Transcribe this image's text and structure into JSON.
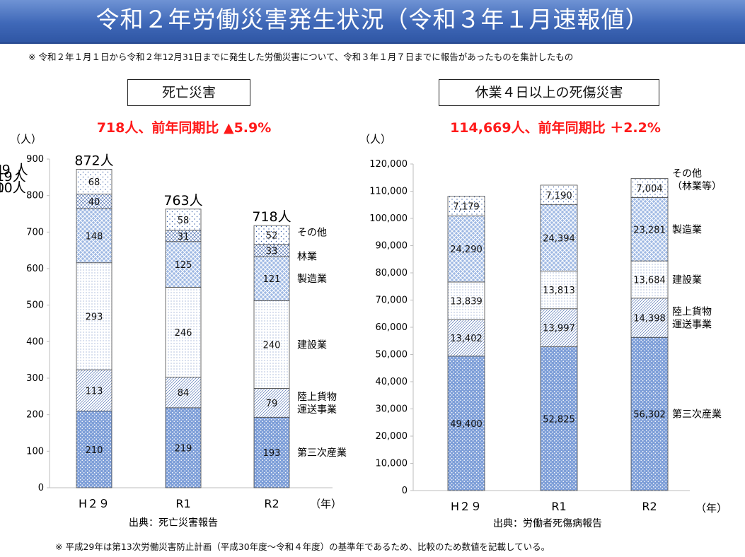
{
  "title": "令和２年労働災害発生状況（令和３年１月速報値）",
  "note_top": "※ 令和２年１月１日から令和２年12月31日までに発生した労働災害について、令和３年１月７日までに報告があったものを集計したもの",
  "note_bottom": "※ 平成29年は第13次労働災害防止計画（平成30年度～令和４年度）の基準年であるため、比較のため数値を記載している。",
  "left_panel": {
    "heading": "死亡災害",
    "headline": "718人、前年同期比 ▲5.9%",
    "y_unit": "（人）",
    "x_unit": "（年）",
    "source": "出典：死亡災害報告"
  },
  "right_panel": {
    "heading": "休業４日以上の死傷災害",
    "headline": "114,669人、前年同期比 ＋2.2%",
    "y_unit": "（人）",
    "x_unit": "（年）",
    "source": "出典：労働者死傷病報告"
  },
  "colors": {
    "banner": "#3f68b8",
    "headline_red": "#ff1a1a",
    "primary_industry_fill": "#7d9ed8",
    "manufacturing_fill": "#9fb9e4"
  },
  "chart_data": [
    {
      "type": "bar",
      "stacked": true,
      "categories": [
        "H２９",
        "R1",
        "R2"
      ],
      "ylim": [
        0,
        900
      ],
      "yticks": [
        "0",
        "100",
        "200",
        "300",
        "400",
        "500",
        "600",
        "700",
        "800",
        "900"
      ],
      "series": [
        {
          "name": "第三次産業",
          "values": [
            210,
            219,
            193
          ],
          "labels": [
            "210",
            "219",
            "193"
          ]
        },
        {
          "name": "陸上貨物運送事業",
          "values": [
            113,
            84,
            79
          ],
          "labels": [
            "113",
            "84",
            "79"
          ]
        },
        {
          "name": "建設業",
          "values": [
            293,
            246,
            240
          ],
          "labels": [
            "293",
            "246",
            "240"
          ]
        },
        {
          "name": "製造業",
          "values": [
            148,
            125,
            121
          ],
          "labels": [
            "148",
            "125",
            "121"
          ]
        },
        {
          "name": "林業",
          "values": [
            40,
            31,
            33
          ],
          "labels": [
            "40",
            "31",
            "33"
          ]
        },
        {
          "name": "その他",
          "values": [
            68,
            58,
            52
          ],
          "labels": [
            "68",
            "58",
            "52"
          ]
        }
      ],
      "totals": [
        "872人",
        "763人",
        "718人"
      ],
      "grid": false
    },
    {
      "type": "bar",
      "stacked": true,
      "categories": [
        "H２９",
        "R1",
        "R2"
      ],
      "ylim": [
        0,
        120000
      ],
      "yticks": [
        "0",
        "10,000",
        "20,000",
        "30,000",
        "40,000",
        "50,000",
        "60,000",
        "70,000",
        "80,000",
        "90,000",
        "100,000",
        "110,000",
        "120,000"
      ],
      "series": [
        {
          "name": "第三次産業",
          "values": [
            49400,
            52825,
            56302
          ],
          "labels": [
            "49,400",
            "52,825",
            "56,302"
          ]
        },
        {
          "name": "陸上貨物運送事業",
          "values": [
            13402,
            13997,
            14398
          ],
          "labels": [
            "13,402",
            "13,997",
            "14,398"
          ]
        },
        {
          "name": "建設業",
          "values": [
            13839,
            13813,
            13684
          ],
          "labels": [
            "13,839",
            "13,813",
            "13,684"
          ]
        },
        {
          "name": "製造業",
          "values": [
            24290,
            24394,
            23281
          ],
          "labels": [
            "24,290",
            "24,394",
            "23,281"
          ]
        },
        {
          "name": "その他（林業等）",
          "values": [
            7179,
            7190,
            7004
          ],
          "labels": [
            "7,179",
            "7,190",
            "7,004"
          ]
        }
      ],
      "totals": [
        "108,110人",
        "112,219人",
        "114,669 人"
      ],
      "grid": false
    }
  ],
  "legend_left": [
    {
      "lines": [
        "その他"
      ],
      "value": 52
    },
    {
      "lines": [
        "林業"
      ],
      "value": 33
    },
    {
      "lines": [
        "製造業"
      ],
      "value": 121
    },
    {
      "lines": [
        "建設業"
      ],
      "value": 240
    },
    {
      "lines": [
        "陸上貨物",
        "運送事業"
      ],
      "value": 79
    },
    {
      "lines": [
        "第三次産業"
      ],
      "value": 193
    }
  ],
  "legend_right": [
    {
      "lines": [
        "その他",
        "（林業等）"
      ],
      "value": 7004
    },
    {
      "lines": [
        "製造業"
      ],
      "value": 23281
    },
    {
      "lines": [
        "建設業"
      ],
      "value": 13684
    },
    {
      "lines": [
        "陸上貨物",
        "運送事業"
      ],
      "value": 14398
    },
    {
      "lines": [
        "第三次産業"
      ],
      "value": 56302
    }
  ]
}
